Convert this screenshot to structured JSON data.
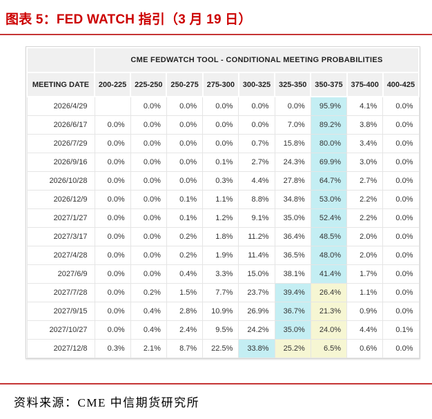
{
  "title": "图表 5：FED WATCH 指引（3 月 19 日）",
  "source": "资料来源：CME  中信期货研究所",
  "colors": {
    "title_red": "#cc0000",
    "rule_red": "#c53434",
    "header_bg": "#f0f0f0",
    "highlight_cyan": "#c4eef3",
    "highlight_yellow": "#f6f6d3"
  },
  "chart_data": {
    "type": "table",
    "title": "CME FEDWATCH TOOL - CONDITIONAL MEETING PROBABILITIES",
    "date_header": "MEETING DATE",
    "rate_ranges": [
      "200-225",
      "225-250",
      "250-275",
      "275-300",
      "300-325",
      "325-350",
      "350-375",
      "375-400",
      "400-425"
    ],
    "rows": [
      {
        "date": "2026/4/29",
        "values": [
          "",
          "0.0%",
          "0.0%",
          "0.0%",
          "0.0%",
          "0.0%",
          "95.9%",
          "4.1%",
          "0.0%"
        ],
        "highlights": [
          "",
          "",
          "",
          "",
          "",
          "",
          "cyan",
          "",
          ""
        ]
      },
      {
        "date": "2026/6/17",
        "values": [
          "0.0%",
          "0.0%",
          "0.0%",
          "0.0%",
          "0.0%",
          "7.0%",
          "89.2%",
          "3.8%",
          "0.0%"
        ],
        "highlights": [
          "",
          "",
          "",
          "",
          "",
          "",
          "cyan",
          "",
          ""
        ]
      },
      {
        "date": "2026/7/29",
        "values": [
          "0.0%",
          "0.0%",
          "0.0%",
          "0.0%",
          "0.7%",
          "15.8%",
          "80.0%",
          "3.4%",
          "0.0%"
        ],
        "highlights": [
          "",
          "",
          "",
          "",
          "",
          "",
          "cyan",
          "",
          ""
        ]
      },
      {
        "date": "2026/9/16",
        "values": [
          "0.0%",
          "0.0%",
          "0.0%",
          "0.1%",
          "2.7%",
          "24.3%",
          "69.9%",
          "3.0%",
          "0.0%"
        ],
        "highlights": [
          "",
          "",
          "",
          "",
          "",
          "",
          "cyan",
          "",
          ""
        ]
      },
      {
        "date": "2026/10/28",
        "values": [
          "0.0%",
          "0.0%",
          "0.0%",
          "0.3%",
          "4.4%",
          "27.8%",
          "64.7%",
          "2.7%",
          "0.0%"
        ],
        "highlights": [
          "",
          "",
          "",
          "",
          "",
          "",
          "cyan",
          "",
          ""
        ]
      },
      {
        "date": "2026/12/9",
        "values": [
          "0.0%",
          "0.0%",
          "0.1%",
          "1.1%",
          "8.8%",
          "34.8%",
          "53.0%",
          "2.2%",
          "0.0%"
        ],
        "highlights": [
          "",
          "",
          "",
          "",
          "",
          "",
          "cyan",
          "",
          ""
        ]
      },
      {
        "date": "2027/1/27",
        "values": [
          "0.0%",
          "0.0%",
          "0.1%",
          "1.2%",
          "9.1%",
          "35.0%",
          "52.4%",
          "2.2%",
          "0.0%"
        ],
        "highlights": [
          "",
          "",
          "",
          "",
          "",
          "",
          "cyan",
          "",
          ""
        ]
      },
      {
        "date": "2027/3/17",
        "values": [
          "0.0%",
          "0.0%",
          "0.2%",
          "1.8%",
          "11.2%",
          "36.4%",
          "48.5%",
          "2.0%",
          "0.0%"
        ],
        "highlights": [
          "",
          "",
          "",
          "",
          "",
          "",
          "cyan",
          "",
          ""
        ]
      },
      {
        "date": "2027/4/28",
        "values": [
          "0.0%",
          "0.0%",
          "0.2%",
          "1.9%",
          "11.4%",
          "36.5%",
          "48.0%",
          "2.0%",
          "0.0%"
        ],
        "highlights": [
          "",
          "",
          "",
          "",
          "",
          "",
          "cyan",
          "",
          ""
        ]
      },
      {
        "date": "2027/6/9",
        "values": [
          "0.0%",
          "0.0%",
          "0.4%",
          "3.3%",
          "15.0%",
          "38.1%",
          "41.4%",
          "1.7%",
          "0.0%"
        ],
        "highlights": [
          "",
          "",
          "",
          "",
          "",
          "",
          "cyan",
          "",
          ""
        ]
      },
      {
        "date": "2027/7/28",
        "values": [
          "0.0%",
          "0.2%",
          "1.5%",
          "7.7%",
          "23.7%",
          "39.4%",
          "26.4%",
          "1.1%",
          "0.0%"
        ],
        "highlights": [
          "",
          "",
          "",
          "",
          "",
          "cyan",
          "yellow",
          "",
          ""
        ]
      },
      {
        "date": "2027/9/15",
        "values": [
          "0.0%",
          "0.4%",
          "2.8%",
          "10.9%",
          "26.9%",
          "36.7%",
          "21.3%",
          "0.9%",
          "0.0%"
        ],
        "highlights": [
          "",
          "",
          "",
          "",
          "",
          "cyan",
          "yellow",
          "",
          ""
        ]
      },
      {
        "date": "2027/10/27",
        "values": [
          "0.0%",
          "0.4%",
          "2.4%",
          "9.5%",
          "24.2%",
          "35.0%",
          "24.0%",
          "4.4%",
          "0.1%"
        ],
        "highlights": [
          "",
          "",
          "",
          "",
          "",
          "cyan",
          "yellow",
          "",
          ""
        ]
      },
      {
        "date": "2027/12/8",
        "values": [
          "0.3%",
          "2.1%",
          "8.7%",
          "22.5%",
          "33.8%",
          "25.2%",
          "6.5%",
          "0.6%",
          "0.0%"
        ],
        "highlights": [
          "",
          "",
          "",
          "",
          "cyan",
          "yellow",
          "yellow",
          "",
          ""
        ]
      }
    ]
  }
}
